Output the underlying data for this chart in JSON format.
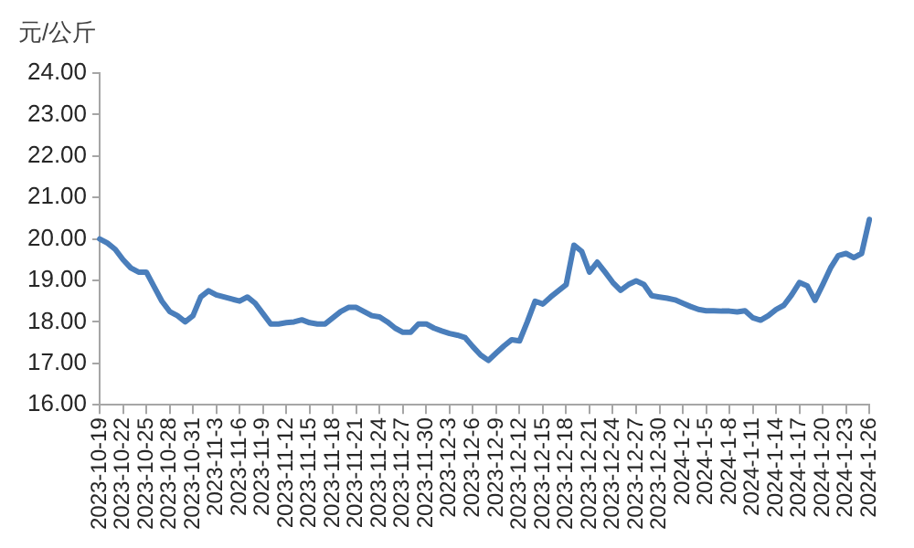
{
  "chart_data": {
    "type": "line",
    "ylabel": "元/公斤",
    "categories": [
      "2023-10-19",
      null,
      null,
      "2023-10-22",
      null,
      null,
      "2023-10-25",
      null,
      null,
      "2023-10-28",
      null,
      null,
      "2023-10-31",
      null,
      null,
      "2023-11-3",
      null,
      null,
      "2023-11-6",
      null,
      null,
      "2023-11-9",
      null,
      null,
      "2023-11-12",
      null,
      null,
      "2023-11-15",
      null,
      null,
      "2023-11-18",
      null,
      null,
      "2023-11-21",
      null,
      null,
      "2023-11-24",
      null,
      null,
      "2023-11-27",
      null,
      null,
      "2023-11-30",
      null,
      null,
      "2023-12-3",
      null,
      null,
      "2023-12-6",
      null,
      null,
      "2023-12-9",
      null,
      null,
      "2023-12-12",
      null,
      null,
      "2023-12-15",
      null,
      null,
      "2023-12-18",
      null,
      null,
      "2023-12-21",
      null,
      null,
      "2023-12-24",
      null,
      null,
      "2023-12-27",
      null,
      null,
      "2023-12-30",
      null,
      null,
      "2024-1-2",
      null,
      null,
      "2024-1-5",
      null,
      null,
      "2024-1-8",
      null,
      null,
      "2024-1-11",
      null,
      null,
      "2024-1-14",
      null,
      null,
      "2024-1-17",
      null,
      null,
      "2024-1-20",
      null,
      null,
      "2024-1-23",
      null,
      null,
      "2024-1-26"
    ],
    "series": [
      {
        "color": "#4a7ebb",
        "values": [
          20.0,
          19.9,
          19.75,
          19.5,
          19.3,
          19.2,
          19.2,
          18.85,
          18.5,
          18.25,
          18.15,
          18.0,
          18.15,
          18.6,
          18.75,
          18.65,
          18.6,
          18.55,
          18.5,
          18.6,
          18.45,
          18.2,
          17.95,
          17.95,
          17.98,
          18.0,
          18.05,
          17.98,
          17.95,
          17.95,
          18.1,
          18.25,
          18.35,
          18.35,
          18.25,
          18.15,
          18.12,
          18.0,
          17.85,
          17.75,
          17.75,
          17.95,
          17.95,
          17.85,
          17.78,
          17.72,
          17.68,
          17.62,
          17.4,
          17.2,
          17.07,
          17.25,
          17.42,
          17.57,
          17.54,
          18.0,
          18.5,
          18.43,
          18.6,
          18.75,
          18.9,
          19.85,
          19.7,
          19.2,
          19.44,
          19.2,
          18.95,
          18.76,
          18.9,
          18.99,
          18.9,
          18.63,
          18.6,
          18.57,
          18.53,
          18.45,
          18.37,
          18.3,
          18.27,
          18.27,
          18.26,
          18.26,
          18.24,
          18.27,
          18.1,
          18.04,
          18.15,
          18.3,
          18.4,
          18.65,
          18.95,
          18.87,
          18.52,
          18.9,
          19.3,
          19.6,
          19.65,
          19.55,
          19.65,
          20.47
        ]
      }
    ],
    "ylim": [
      16,
      24
    ],
    "yticks": [
      {
        "value": 16,
        "label": "16.00"
      },
      {
        "value": 17,
        "label": "17.00"
      },
      {
        "value": 18,
        "label": "18.00"
      },
      {
        "value": 19,
        "label": "19.00"
      },
      {
        "value": 20,
        "label": "20.00"
      },
      {
        "value": 21,
        "label": "21.00"
      },
      {
        "value": 22,
        "label": "22.00"
      },
      {
        "value": 23,
        "label": "23.00"
      },
      {
        "value": 24,
        "label": "24.00"
      }
    ],
    "grid": false,
    "legend": false,
    "marker": "none",
    "line_style": "solid"
  }
}
